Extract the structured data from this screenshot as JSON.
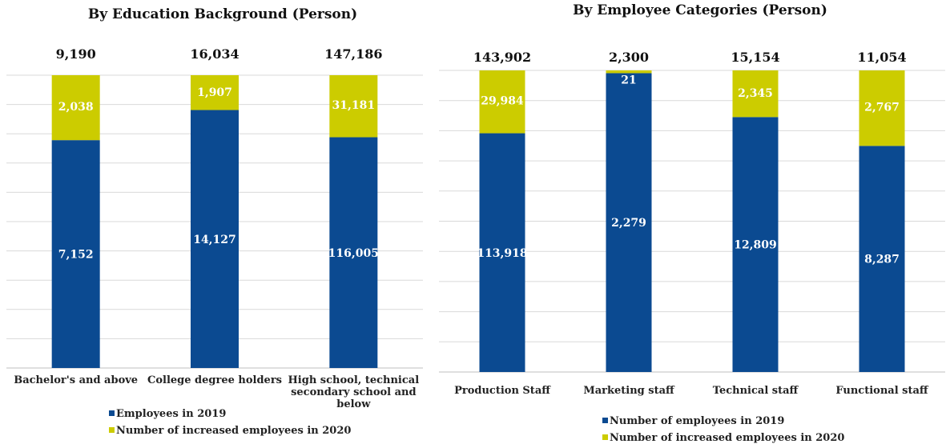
{
  "colors": {
    "base": "#0b4a91",
    "increase": "#cccc00"
  },
  "chart_data": [
    {
      "type": "bar",
      "stacked": true,
      "title": "By Education Background (Person)",
      "categories": [
        "Bachelor's and above",
        "College degree holders",
        "High school, technical secondary school and below"
      ],
      "category_lines": [
        [
          "Bachelor's and above"
        ],
        [
          "College degree holders"
        ],
        [
          "High school, technical",
          "secondary school and",
          "below"
        ]
      ],
      "series": [
        {
          "name": "Employees in 2019",
          "values": [
            7152,
            14127,
            116005
          ],
          "labels": [
            "7,152",
            "14,127",
            "116,005"
          ]
        },
        {
          "name": "Number of increased employees in 2020",
          "values": [
            2038,
            1907,
            31181
          ],
          "labels": [
            "2,038",
            "1,907",
            "31,181"
          ]
        }
      ],
      "totals": [
        "9,190",
        "16,034",
        "147,186"
      ],
      "legend_position": "bottom",
      "grid": true
    },
    {
      "type": "bar",
      "stacked": true,
      "title": "By Employee Categories   (Person)",
      "categories": [
        "Production Staff",
        "Marketing staff",
        "Technical staff",
        "Functional staff"
      ],
      "category_lines": [
        [
          "Production Staff"
        ],
        [
          "Marketing staff"
        ],
        [
          "Technical staff"
        ],
        [
          "Functional staff"
        ]
      ],
      "series": [
        {
          "name": "Number of employees in 2019",
          "values": [
            113918,
            2279,
            12809,
            8287
          ],
          "labels": [
            "113,918",
            "2,279",
            "12,809",
            "8,287"
          ]
        },
        {
          "name": "Number of increased employees in 2020",
          "values": [
            29984,
            21,
            2345,
            2767
          ],
          "labels": [
            "29,984",
            "21",
            "2,345",
            "2,767"
          ]
        }
      ],
      "totals": [
        "143,902",
        "2,300",
        "15,154",
        "11,054"
      ],
      "legend_position": "bottom",
      "grid": true
    }
  ]
}
